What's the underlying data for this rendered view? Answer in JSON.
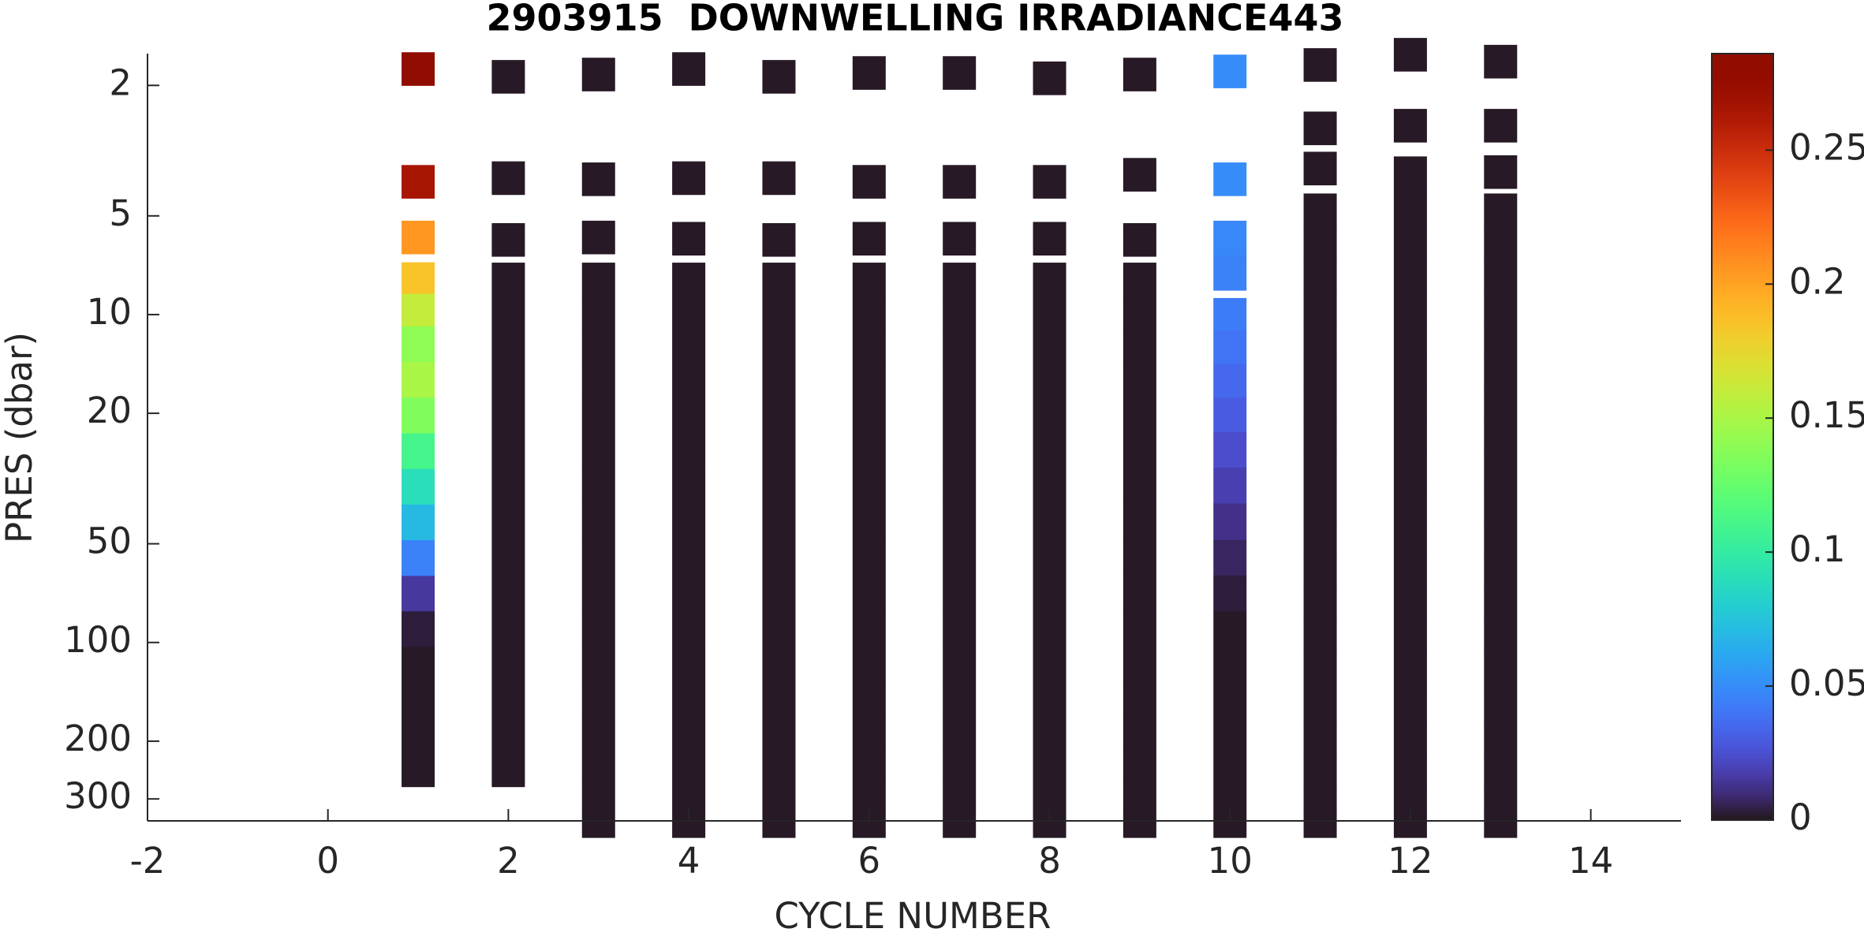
{
  "chart_data": {
    "type": "profile-heatmap",
    "title": "2903915  DOWNWELLING IRRADIANCE443",
    "xlabel": "CYCLE NUMBER",
    "ylabel": "PRES (dbar)",
    "xlim": [
      -2,
      15
    ],
    "xticks": [
      -2,
      0,
      2,
      4,
      6,
      8,
      10,
      12,
      14
    ],
    "ylim": [
      1.6,
      350
    ],
    "yticks": [
      2,
      5,
      10,
      20,
      50,
      100,
      200,
      300
    ],
    "y_log": true,
    "y_reversed": true,
    "colormap": "turbo",
    "clim": [
      0,
      0.286
    ],
    "cticks": [
      0,
      0.05,
      0.1,
      0.15,
      0.2,
      0.25
    ],
    "profiles": [
      {
        "cycle": 1,
        "pres": [
          1.78,
          3.93,
          5.81,
          7.78,
          9.6,
          12.3,
          15.8,
          20.3,
          26.1,
          33.5,
          43,
          55.3,
          71,
          91,
          117,
          150,
          190,
          245
        ],
        "values": [
          0.285,
          0.265,
          0.205,
          0.185,
          0.16,
          0.14,
          0.15,
          0.135,
          0.11,
          0.09,
          0.07,
          0.045,
          0.015,
          0.003,
          0.001,
          0.001,
          0.001,
          0.001
        ]
      },
      {
        "cycle": 2,
        "pres": [
          1.88,
          3.83,
          5.91,
          7.8,
          10,
          12.5,
          16,
          20,
          26,
          33,
          43,
          55,
          71,
          91,
          117,
          150,
          190,
          245
        ],
        "values": [
          0.001,
          0.001,
          0.001,
          0.001,
          0.001,
          0.001,
          0.001,
          0.001,
          0.001,
          0.001,
          0.001,
          0.001,
          0.001,
          0.001,
          0.001,
          0.001,
          0.001,
          0.001
        ]
      },
      {
        "cycle": 3,
        "pres": [
          1.85,
          3.86,
          5.81,
          7.8,
          10,
          12.5,
          16,
          20,
          26,
          33,
          43,
          55,
          71,
          91,
          117,
          150,
          190,
          240,
          300,
          350
        ],
        "values": [
          0.001,
          0.001,
          0.001,
          0.001,
          0.001,
          0.001,
          0.001,
          0.001,
          0.001,
          0.001,
          0.001,
          0.001,
          0.001,
          0.001,
          0.001,
          0.001,
          0.001,
          0.001,
          0.001,
          0.001
        ]
      },
      {
        "cycle": 4,
        "pres": [
          1.78,
          3.83,
          5.86,
          7.8,
          10,
          12.5,
          16,
          20,
          26,
          33,
          43,
          55,
          71,
          91,
          117,
          150,
          190,
          240,
          300,
          350
        ],
        "values": [
          0.001,
          0.001,
          0.001,
          0.001,
          0.001,
          0.001,
          0.001,
          0.001,
          0.001,
          0.001,
          0.001,
          0.001,
          0.001,
          0.001,
          0.001,
          0.001,
          0.001,
          0.001,
          0.001,
          0.001
        ]
      },
      {
        "cycle": 5,
        "pres": [
          1.88,
          3.83,
          5.91,
          7.8,
          10,
          12.5,
          16,
          20,
          26,
          33,
          43,
          55,
          71,
          91,
          117,
          150,
          190,
          240,
          300,
          350
        ],
        "values": [
          0.001,
          0.001,
          0.001,
          0.001,
          0.001,
          0.001,
          0.001,
          0.001,
          0.001,
          0.001,
          0.001,
          0.001,
          0.001,
          0.001,
          0.001,
          0.001,
          0.001,
          0.001,
          0.001,
          0.001
        ]
      },
      {
        "cycle": 6,
        "pres": [
          1.83,
          3.93,
          5.86,
          7.8,
          10,
          12.5,
          16,
          20,
          26,
          33,
          43,
          55,
          71,
          91,
          117,
          150,
          190,
          240,
          300,
          350
        ],
        "values": [
          0.001,
          0.001,
          0.001,
          0.001,
          0.001,
          0.001,
          0.001,
          0.001,
          0.001,
          0.001,
          0.001,
          0.001,
          0.001,
          0.001,
          0.001,
          0.001,
          0.001,
          0.001,
          0.001,
          0.001
        ]
      },
      {
        "cycle": 7,
        "pres": [
          1.83,
          3.93,
          5.86,
          7.8,
          10,
          12.5,
          16,
          20,
          26,
          33,
          43,
          55,
          71,
          91,
          117,
          150,
          190,
          240,
          300,
          350
        ],
        "values": [
          0.001,
          0.001,
          0.001,
          0.001,
          0.001,
          0.001,
          0.001,
          0.001,
          0.001,
          0.001,
          0.001,
          0.001,
          0.001,
          0.001,
          0.001,
          0.001,
          0.001,
          0.001,
          0.001,
          0.001
        ]
      },
      {
        "cycle": 8,
        "pres": [
          1.9,
          3.93,
          5.86,
          7.8,
          10,
          12.5,
          16,
          20,
          26,
          33,
          43,
          55,
          71,
          91,
          117,
          150,
          190,
          240,
          300,
          350
        ],
        "values": [
          0.001,
          0.001,
          0.001,
          0.001,
          0.001,
          0.001,
          0.001,
          0.001,
          0.001,
          0.001,
          0.001,
          0.001,
          0.001,
          0.001,
          0.001,
          0.001,
          0.001,
          0.001,
          0.001,
          0.001
        ]
      },
      {
        "cycle": 9,
        "pres": [
          1.85,
          3.74,
          5.91,
          7.8,
          10,
          12.5,
          16,
          20,
          26,
          33,
          43,
          55,
          71,
          91,
          117,
          150,
          190,
          240,
          300,
          350
        ],
        "values": [
          0.001,
          0.001,
          0.001,
          0.001,
          0.001,
          0.001,
          0.001,
          0.001,
          0.001,
          0.001,
          0.001,
          0.001,
          0.001,
          0.001,
          0.001,
          0.001,
          0.001,
          0.001,
          0.001,
          0.001
        ]
      },
      {
        "cycle": 10,
        "pres": [
          1.81,
          3.86,
          5.81,
          7.5,
          10,
          12.5,
          16,
          20,
          26,
          33,
          43,
          55,
          71,
          91,
          117,
          150,
          190,
          240,
          300,
          350
        ],
        "values": [
          0.05,
          0.05,
          0.048,
          0.045,
          0.043,
          0.04,
          0.035,
          0.03,
          0.024,
          0.018,
          0.012,
          0.007,
          0.003,
          0.001,
          0.001,
          0.001,
          0.001,
          0.001,
          0.001,
          0.001
        ]
      },
      {
        "cycle": 11,
        "pres": [
          1.73,
          2.7,
          3.58,
          4.8,
          6,
          7.5,
          9.5,
          12,
          15,
          19,
          24,
          30,
          38,
          48,
          61,
          77,
          97,
          122,
          155,
          195,
          245,
          300,
          350
        ],
        "values": [
          0.001,
          0.001,
          0.001,
          0.001,
          0.001,
          0.001,
          0.001,
          0.001,
          0.001,
          0.001,
          0.001,
          0.001,
          0.001,
          0.001,
          0.001,
          0.001,
          0.001,
          0.001,
          0.001,
          0.001,
          0.001,
          0.001,
          0.001
        ]
      },
      {
        "cycle": 12,
        "pres": [
          1.61,
          2.65,
          3.7,
          4.8,
          6,
          7.5,
          9.5,
          12,
          15,
          19,
          24,
          30,
          38,
          48,
          61,
          77,
          97,
          122,
          155,
          195,
          245,
          300,
          350
        ],
        "values": [
          0.001,
          0.001,
          0.001,
          0.001,
          0.001,
          0.001,
          0.001,
          0.001,
          0.001,
          0.001,
          0.001,
          0.001,
          0.001,
          0.001,
          0.001,
          0.001,
          0.001,
          0.001,
          0.001,
          0.001,
          0.001,
          0.001,
          0.001
        ]
      },
      {
        "cycle": 13,
        "pres": [
          1.69,
          2.65,
          3.67,
          4.8,
          6,
          7.5,
          9.5,
          12,
          15,
          19,
          24,
          30,
          38,
          48,
          61,
          77,
          97,
          122,
          155,
          195,
          245,
          300,
          350
        ],
        "values": [
          0.001,
          0.001,
          0.001,
          0.001,
          0.001,
          0.001,
          0.001,
          0.001,
          0.001,
          0.001,
          0.001,
          0.001,
          0.001,
          0.001,
          0.001,
          0.001,
          0.001,
          0.001,
          0.001,
          0.001,
          0.001,
          0.001,
          0.001
        ]
      }
    ]
  }
}
